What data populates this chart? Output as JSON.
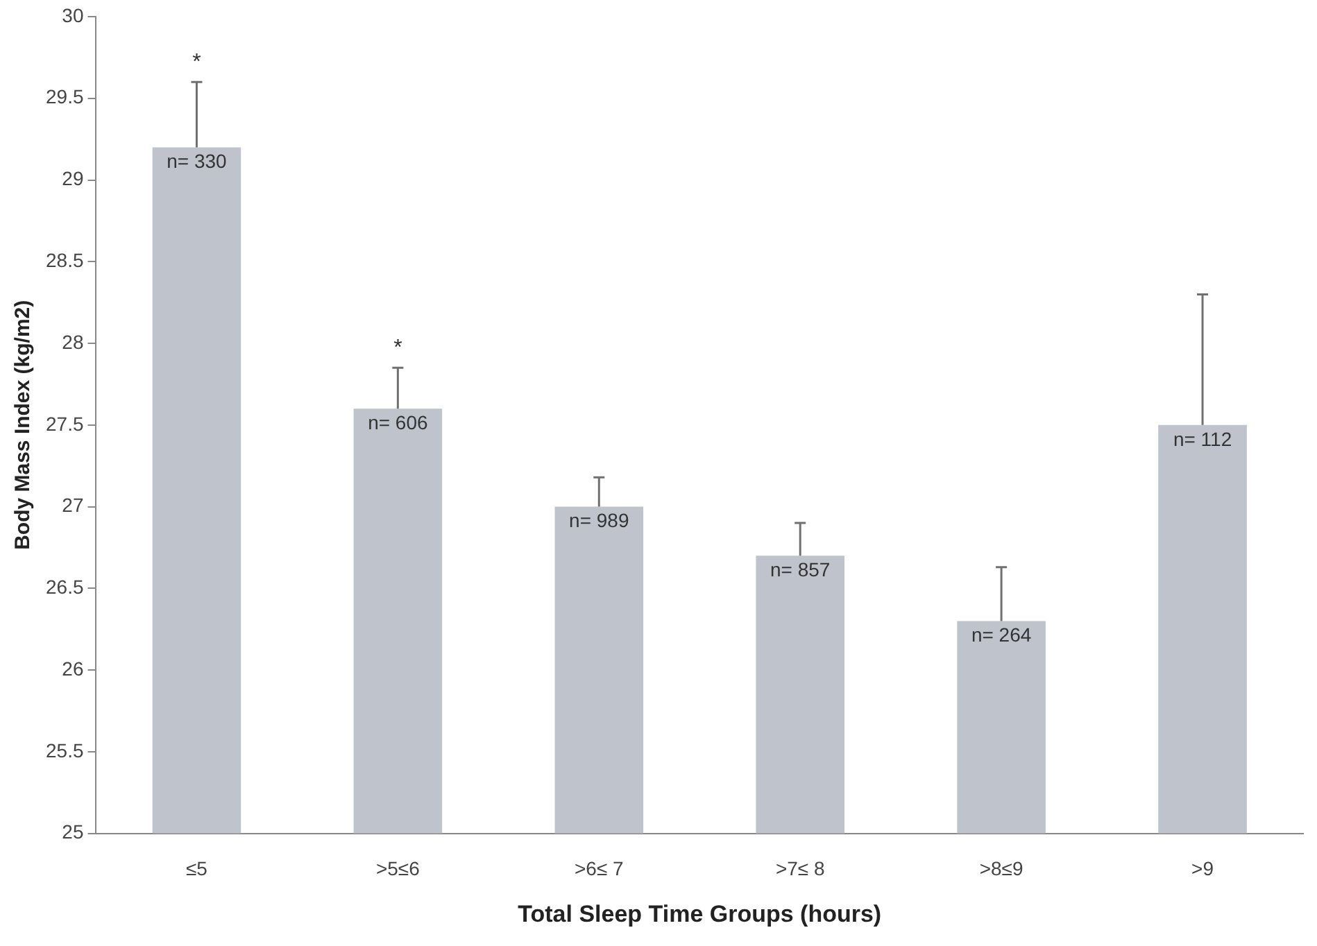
{
  "chart_data": {
    "type": "bar",
    "xlabel": "Total Sleep Time Groups (hours)",
    "ylabel": "Body Mass Index (kg/m2)",
    "categories": [
      "≤5",
      ">5≤6",
      ">6≤ 7",
      ">7≤ 8",
      ">8≤9",
      ">9"
    ],
    "values": [
      29.2,
      27.6,
      27.0,
      26.7,
      26.3,
      27.5
    ],
    "errors": [
      [
        29.2,
        29.6
      ],
      [
        27.6,
        27.85
      ],
      [
        27.0,
        27.18
      ],
      [
        26.7,
        26.9
      ],
      [
        26.3,
        26.63
      ],
      [
        27.5,
        28.3
      ]
    ],
    "color": "#bfc3cb",
    "ylim": [
      25,
      30
    ],
    "yticks": [
      25,
      25.5,
      26,
      26.5,
      27,
      27.5,
      28,
      28.5,
      29,
      29.5,
      30
    ],
    "grid": false,
    "legend": false,
    "annotations": [
      {
        "text": "n= 330",
        "x": "≤5",
        "y": 29.2
      },
      {
        "text": "n= 606",
        "x": ">5≤6",
        "y": 27.6
      },
      {
        "text": "n= 989",
        "x": ">6≤ 7",
        "y": 27.0
      },
      {
        "text": "n= 857",
        "x": ">7≤ 8",
        "y": 26.7
      },
      {
        "text": "n= 264",
        "x": ">8≤9",
        "y": 26.3
      },
      {
        "text": "n= 112",
        "x": ">9",
        "y": 27.5
      },
      {
        "text": "*",
        "x": "≤5",
        "y": 29.6
      },
      {
        "text": "*",
        "x": ">5≤6",
        "y": 27.85
      }
    ]
  }
}
